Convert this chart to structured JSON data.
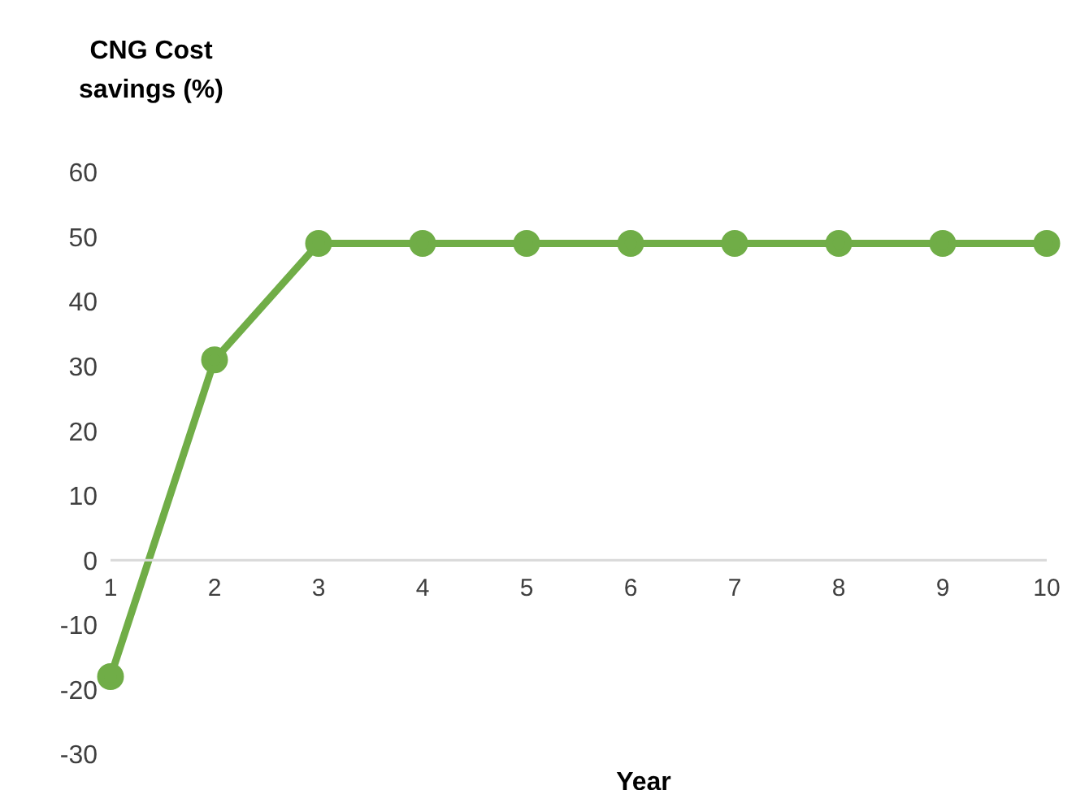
{
  "chart_data": {
    "type": "line",
    "ylabel": "CNG Cost savings (%)",
    "xlabel": "Year",
    "categories": [
      "1",
      "2",
      "3",
      "4",
      "5",
      "6",
      "7",
      "8",
      "9",
      "10"
    ],
    "series": [
      {
        "color": "#70ad47",
        "values": [
          -18,
          31,
          49,
          49,
          49,
          49,
          49,
          49,
          49,
          49
        ]
      }
    ],
    "ylim": [
      -30,
      60
    ],
    "yticks": [
      -30,
      -20,
      -10,
      0,
      10,
      20,
      30,
      40,
      50,
      60
    ],
    "grid": false,
    "legend": false,
    "marker": "circle",
    "line_style": "solid"
  }
}
